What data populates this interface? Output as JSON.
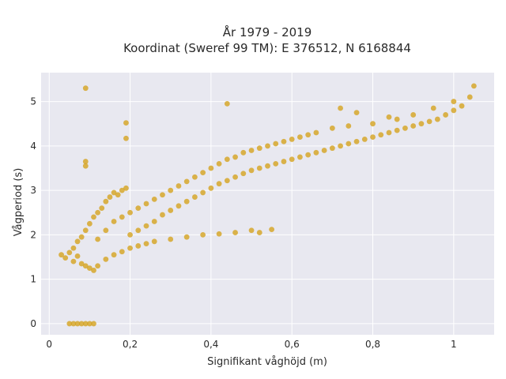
{
  "chart_data": {
    "type": "scatter",
    "title_line1": "År 1979 - 2019",
    "title_line2": "Koordinat (Sweref 99 TM): E 376512, N 6168844",
    "xlabel": "Signifikant våghöjd (m)",
    "ylabel": "Vågperiod (s)",
    "xlim": [
      -0.02,
      1.1
    ],
    "ylim": [
      -0.25,
      5.65
    ],
    "x_ticks": [
      {
        "value": 0,
        "label": "0"
      },
      {
        "value": 0.2,
        "label": "0,2"
      },
      {
        "value": 0.4,
        "label": "0,4"
      },
      {
        "value": 0.6,
        "label": "0,6"
      },
      {
        "value": 0.8,
        "label": "0,8"
      },
      {
        "value": 1,
        "label": "1"
      }
    ],
    "y_ticks": [
      {
        "value": 0,
        "label": "0"
      },
      {
        "value": 1,
        "label": "1"
      },
      {
        "value": 2,
        "label": "2"
      },
      {
        "value": 3,
        "label": "3"
      },
      {
        "value": 4,
        "label": "4"
      },
      {
        "value": 5,
        "label": "5"
      }
    ],
    "grid": true,
    "background_color": "#e8e8f0",
    "marker_color": "#d4a21f",
    "series": [
      {
        "points": [
          [
            0.05,
            0.0
          ],
          [
            0.06,
            0.0
          ],
          [
            0.07,
            0.0
          ],
          [
            0.08,
            0.0
          ],
          [
            0.09,
            0.0
          ],
          [
            0.1,
            0.0
          ],
          [
            0.11,
            0.0
          ],
          [
            0.03,
            1.55
          ],
          [
            0.04,
            1.48
          ],
          [
            0.05,
            1.6
          ],
          [
            0.06,
            1.4
          ],
          [
            0.07,
            1.52
          ],
          [
            0.08,
            1.35
          ],
          [
            0.09,
            1.3
          ],
          [
            0.1,
            1.25
          ],
          [
            0.06,
            1.7
          ],
          [
            0.07,
            1.85
          ],
          [
            0.08,
            1.95
          ],
          [
            0.09,
            2.1
          ],
          [
            0.1,
            2.25
          ],
          [
            0.11,
            2.4
          ],
          [
            0.12,
            2.5
          ],
          [
            0.13,
            2.6
          ],
          [
            0.14,
            2.75
          ],
          [
            0.15,
            2.85
          ],
          [
            0.16,
            2.95
          ],
          [
            0.17,
            2.9
          ],
          [
            0.18,
            3.0
          ],
          [
            0.19,
            3.05
          ],
          [
            0.11,
            1.2
          ],
          [
            0.12,
            1.3
          ],
          [
            0.14,
            1.45
          ],
          [
            0.16,
            1.55
          ],
          [
            0.18,
            1.62
          ],
          [
            0.2,
            1.7
          ],
          [
            0.22,
            1.75
          ],
          [
            0.24,
            1.8
          ],
          [
            0.26,
            1.85
          ],
          [
            0.3,
            1.9
          ],
          [
            0.34,
            1.95
          ],
          [
            0.38,
            2.0
          ],
          [
            0.42,
            2.02
          ],
          [
            0.46,
            2.05
          ],
          [
            0.5,
            2.1
          ],
          [
            0.52,
            2.05
          ],
          [
            0.12,
            1.9
          ],
          [
            0.14,
            2.1
          ],
          [
            0.16,
            2.3
          ],
          [
            0.18,
            2.4
          ],
          [
            0.2,
            2.5
          ],
          [
            0.22,
            2.6
          ],
          [
            0.24,
            2.7
          ],
          [
            0.26,
            2.8
          ],
          [
            0.28,
            2.9
          ],
          [
            0.3,
            3.0
          ],
          [
            0.32,
            3.1
          ],
          [
            0.34,
            3.2
          ],
          [
            0.36,
            3.3
          ],
          [
            0.38,
            3.4
          ],
          [
            0.4,
            3.5
          ],
          [
            0.42,
            3.6
          ],
          [
            0.44,
            3.7
          ],
          [
            0.46,
            3.75
          ],
          [
            0.48,
            3.85
          ],
          [
            0.5,
            3.9
          ],
          [
            0.52,
            3.95
          ],
          [
            0.54,
            4.0
          ],
          [
            0.56,
            4.05
          ],
          [
            0.58,
            4.1
          ],
          [
            0.2,
            2.0
          ],
          [
            0.22,
            2.1
          ],
          [
            0.24,
            2.2
          ],
          [
            0.26,
            2.3
          ],
          [
            0.28,
            2.45
          ],
          [
            0.3,
            2.55
          ],
          [
            0.32,
            2.65
          ],
          [
            0.34,
            2.75
          ],
          [
            0.36,
            2.85
          ],
          [
            0.38,
            2.95
          ],
          [
            0.4,
            3.05
          ],
          [
            0.42,
            3.15
          ],
          [
            0.44,
            3.22
          ],
          [
            0.46,
            3.3
          ],
          [
            0.48,
            3.38
          ],
          [
            0.5,
            3.45
          ],
          [
            0.52,
            3.5
          ],
          [
            0.54,
            3.55
          ],
          [
            0.56,
            3.6
          ],
          [
            0.58,
            3.65
          ],
          [
            0.6,
            3.7
          ],
          [
            0.62,
            3.75
          ],
          [
            0.64,
            3.8
          ],
          [
            0.66,
            3.85
          ],
          [
            0.68,
            3.9
          ],
          [
            0.7,
            3.95
          ],
          [
            0.72,
            4.0
          ],
          [
            0.74,
            4.05
          ],
          [
            0.76,
            4.1
          ],
          [
            0.78,
            4.15
          ],
          [
            0.8,
            4.2
          ],
          [
            0.82,
            4.25
          ],
          [
            0.84,
            4.3
          ],
          [
            0.86,
            4.35
          ],
          [
            0.88,
            4.4
          ],
          [
            0.9,
            4.45
          ],
          [
            0.92,
            4.5
          ],
          [
            0.94,
            4.55
          ],
          [
            0.96,
            4.6
          ],
          [
            0.98,
            4.7
          ],
          [
            1.0,
            4.8
          ],
          [
            1.02,
            4.9
          ],
          [
            1.04,
            5.1
          ],
          [
            1.05,
            5.35
          ],
          [
            0.6,
            4.15
          ],
          [
            0.62,
            4.2
          ],
          [
            0.64,
            4.25
          ],
          [
            0.66,
            4.3
          ],
          [
            0.7,
            4.4
          ],
          [
            0.74,
            4.45
          ],
          [
            0.8,
            4.5
          ],
          [
            0.86,
            4.6
          ],
          [
            0.9,
            4.7
          ],
          [
            0.95,
            4.85
          ],
          [
            1.0,
            5.0
          ],
          [
            0.72,
            4.85
          ],
          [
            0.76,
            4.75
          ],
          [
            0.84,
            4.65
          ],
          [
            0.09,
            5.3
          ],
          [
            0.09,
            3.65
          ],
          [
            0.09,
            3.55
          ],
          [
            0.19,
            4.52
          ],
          [
            0.19,
            4.17
          ],
          [
            0.44,
            4.95
          ],
          [
            0.55,
            2.12
          ]
        ]
      }
    ]
  }
}
